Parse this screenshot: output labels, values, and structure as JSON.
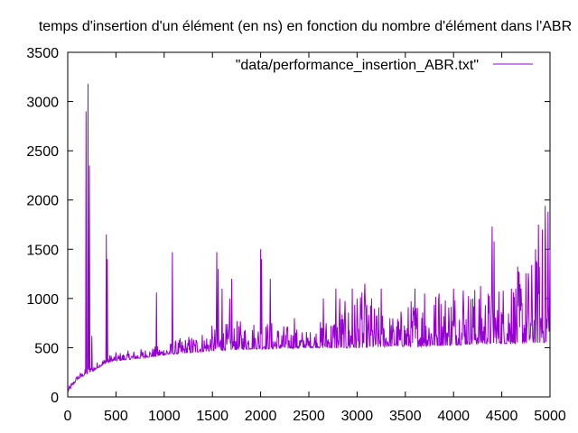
{
  "chart_data": {
    "type": "line",
    "title": "temps d'insertion d'un élément (en ns) en fonction du nombre d'élément dans l'ABR",
    "xlabel": "",
    "ylabel": "",
    "xlim": [
      0,
      5000
    ],
    "ylim": [
      0,
      3500
    ],
    "x_ticks": [
      0,
      500,
      1000,
      1500,
      2000,
      2500,
      3000,
      3500,
      4000,
      4500,
      5000
    ],
    "y_ticks": [
      0,
      500,
      1000,
      1500,
      2000,
      2500,
      3000,
      3500
    ],
    "grid": false,
    "legend_position": "top-right",
    "series": [
      {
        "name": "\"data/performance_insertion_ABR.txt\"",
        "color": "#9400d3",
        "baseline": [
          [
            0,
            50
          ],
          [
            50,
            120
          ],
          [
            100,
            180
          ],
          [
            150,
            210
          ],
          [
            200,
            240
          ],
          [
            250,
            260
          ],
          [
            300,
            290
          ],
          [
            350,
            320
          ],
          [
            400,
            345
          ],
          [
            450,
            360
          ],
          [
            500,
            370
          ],
          [
            600,
            380
          ],
          [
            700,
            390
          ],
          [
            800,
            405
          ],
          [
            900,
            415
          ],
          [
            1000,
            430
          ],
          [
            1100,
            440
          ],
          [
            1200,
            450
          ],
          [
            1300,
            460
          ],
          [
            1400,
            470
          ],
          [
            1500,
            480
          ],
          [
            1600,
            485
          ],
          [
            1700,
            490
          ],
          [
            1800,
            495
          ],
          [
            1900,
            500
          ],
          [
            2000,
            500
          ],
          [
            2200,
            500
          ],
          [
            2400,
            505
          ],
          [
            2600,
            510
          ],
          [
            2800,
            515
          ],
          [
            3000,
            520
          ],
          [
            3200,
            525
          ],
          [
            3400,
            530
          ],
          [
            3600,
            535
          ],
          [
            3800,
            545
          ],
          [
            4000,
            555
          ],
          [
            4200,
            565
          ],
          [
            4400,
            570
          ],
          [
            4600,
            575
          ],
          [
            4800,
            585
          ],
          [
            5000,
            600
          ]
        ],
        "noise_band": [
          [
            0,
            20
          ],
          [
            500,
            40
          ],
          [
            1000,
            50
          ],
          [
            1500,
            120
          ],
          [
            2000,
            150
          ],
          [
            2500,
            80
          ],
          [
            2800,
            200
          ],
          [
            3000,
            250
          ],
          [
            3400,
            150
          ],
          [
            3600,
            250
          ],
          [
            4000,
            300
          ],
          [
            4400,
            280
          ],
          [
            4800,
            400
          ],
          [
            5000,
            450
          ]
        ],
        "spikes": [
          [
            190,
            2900
          ],
          [
            210,
            3180
          ],
          [
            225,
            2350
          ],
          [
            250,
            620
          ],
          [
            400,
            1650
          ],
          [
            410,
            1400
          ],
          [
            920,
            1060
          ],
          [
            1085,
            1470
          ],
          [
            1545,
            1470
          ],
          [
            1560,
            1300
          ],
          [
            1600,
            1100
          ],
          [
            1680,
            1000
          ],
          [
            1700,
            1200
          ],
          [
            2000,
            1500
          ],
          [
            2010,
            1400
          ],
          [
            2100,
            1200
          ],
          [
            2350,
            800
          ],
          [
            2650,
            1000
          ],
          [
            2780,
            1100
          ],
          [
            2820,
            1000
          ],
          [
            2950,
            1100
          ],
          [
            3000,
            1000
          ],
          [
            3050,
            1060
          ],
          [
            3080,
            1150
          ],
          [
            3150,
            1000
          ],
          [
            3250,
            1100
          ],
          [
            3600,
            1100
          ],
          [
            3700,
            1050
          ],
          [
            3850,
            1050
          ],
          [
            4000,
            1100
          ],
          [
            4100,
            1080
          ],
          [
            4200,
            1000
          ],
          [
            4400,
            1730
          ],
          [
            4420,
            1580
          ],
          [
            4600,
            1100
          ],
          [
            4700,
            1100
          ],
          [
            4850,
            1500
          ],
          [
            4880,
            1750
          ],
          [
            4920,
            1700
          ],
          [
            4950,
            1940
          ],
          [
            4980,
            1880
          ],
          [
            5000,
            1500
          ]
        ]
      }
    ]
  }
}
